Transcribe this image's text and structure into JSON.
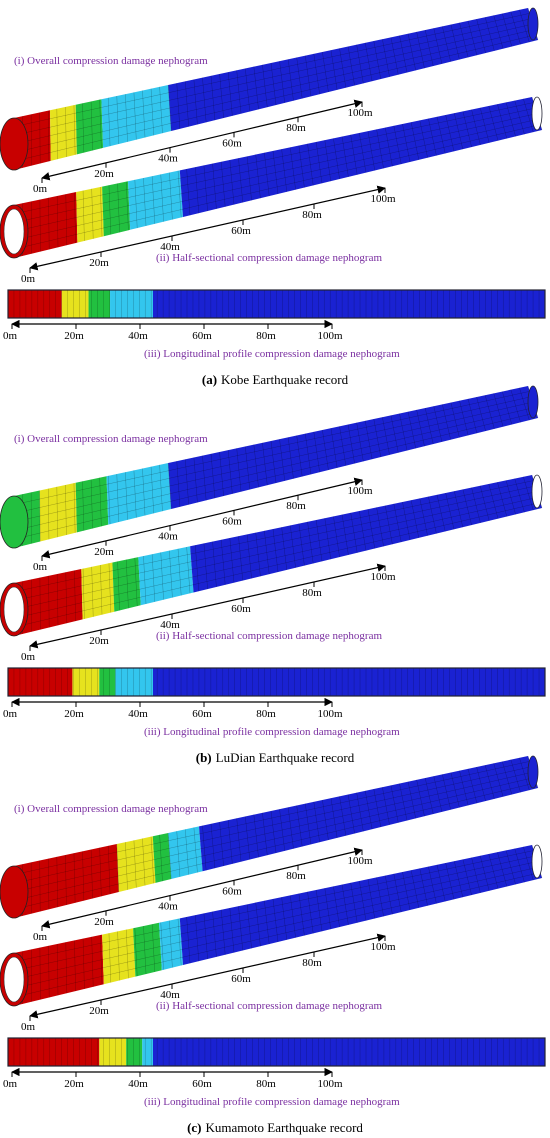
{
  "panels": [
    {
      "caption_label": "(a)",
      "caption_text": "Kobe Earthquake record",
      "views": [
        {
          "label": "(i) Overall compression damage nephogram",
          "scale": [
            "0m",
            "20m",
            "40m",
            "60m",
            "80m",
            "100m"
          ]
        },
        {
          "label": "(ii) Half-sectional compression damage nephogram",
          "scale": [
            "0m",
            "20m",
            "40m",
            "60m",
            "80m",
            "100m"
          ]
        },
        {
          "label": "(iii) Longitudinal profile compression damage nephogram",
          "scale": [
            "0m",
            "20m",
            "40m",
            "60m",
            "80m",
            "100m"
          ]
        }
      ]
    },
    {
      "caption_label": "(b)",
      "caption_text": "LuDian Earthquake record",
      "views": [
        {
          "label": "(i) Overall compression damage nephogram",
          "scale": [
            "0m",
            "20m",
            "40m",
            "60m",
            "80m",
            "100m"
          ]
        },
        {
          "label": "(ii) Half-sectional compression damage nephogram",
          "scale": [
            "0m",
            "20m",
            "40m",
            "60m",
            "80m",
            "100m"
          ]
        },
        {
          "label": "(iii) Longitudinal profile compression damage nephogram",
          "scale": [
            "0m",
            "20m",
            "40m",
            "60m",
            "80m",
            "100m"
          ]
        }
      ]
    },
    {
      "caption_label": "(c)",
      "caption_text": "Kumamoto Earthquake record",
      "views": [
        {
          "label": "(i) Overall compression damage nephogram",
          "scale": [
            "0m",
            "20m",
            "40m",
            "60m",
            "80m",
            "100m"
          ]
        },
        {
          "label": "(ii) Half-sectional compression damage nephogram",
          "scale": [
            "0m",
            "20m",
            "40m",
            "60m",
            "80m",
            "100m"
          ]
        },
        {
          "label": "(iii) Longitudinal profile compression damage nephogram",
          "scale": [
            "0m",
            "20m",
            "40m",
            "60m",
            "80m",
            "100m"
          ]
        }
      ]
    }
  ]
}
